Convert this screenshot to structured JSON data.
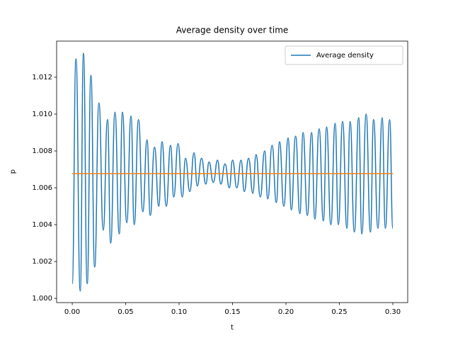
{
  "chart_data": {
    "type": "line",
    "title": "Average density over time",
    "xlabel": "t",
    "ylabel": "p",
    "legend": "upper right",
    "xlim": [
      -0.0146,
      0.3139
    ],
    "ylim": [
      0.99977,
      1.01396
    ],
    "xticks": [
      {
        "value": 0,
        "label": "0.00"
      },
      {
        "value": 0.05,
        "label": "0.05"
      },
      {
        "value": 0.1,
        "label": "0.10"
      },
      {
        "value": 0.15,
        "label": "0.15"
      },
      {
        "value": 0.2,
        "label": "0.20"
      },
      {
        "value": 0.25,
        "label": "0.25"
      },
      {
        "value": 0.3,
        "label": "0.30"
      }
    ],
    "yticks": [
      {
        "value": 1.0,
        "label": "1.000"
      },
      {
        "value": 1.002,
        "label": "1.002"
      },
      {
        "value": 1.004,
        "label": "1.004"
      },
      {
        "value": 1.006,
        "label": "1.006"
      },
      {
        "value": 1.008,
        "label": "1.008"
      },
      {
        "value": 1.01,
        "label": "1.010"
      },
      {
        "value": 1.012,
        "label": "1.012"
      }
    ],
    "series": [
      {
        "name": "Average density",
        "color": "#1f77b4",
        "x": [
          0,
          0.0035,
          0.0075,
          0.0105,
          0.014,
          0.0175,
          0.021,
          0.025,
          0.029,
          0.033,
          0.036,
          0.04,
          0.044,
          0.047,
          0.051,
          0.055,
          0.058,
          0.062,
          0.066,
          0.07,
          0.073,
          0.077,
          0.081,
          0.084,
          0.088,
          0.092,
          0.095,
          0.099,
          0.103,
          0.106,
          0.11,
          0.114,
          0.117,
          0.121,
          0.125,
          0.128,
          0.132,
          0.136,
          0.139,
          0.143,
          0.147,
          0.15,
          0.154,
          0.158,
          0.161,
          0.165,
          0.169,
          0.172,
          0.176,
          0.18,
          0.183,
          0.187,
          0.191,
          0.194,
          0.198,
          0.202,
          0.205,
          0.209,
          0.213,
          0.216,
          0.22,
          0.224,
          0.227,
          0.231,
          0.235,
          0.238,
          0.242,
          0.246,
          0.249,
          0.253,
          0.257,
          0.26,
          0.264,
          0.268,
          0.271,
          0.275,
          0.279,
          0.282,
          0.286,
          0.29,
          0.293,
          0.297,
          0.3
        ],
        "values": [
          1.0008,
          1.013,
          1.0004,
          1.0133,
          1.0008,
          1.0121,
          1.0017,
          1.0106,
          1.0037,
          1.0097,
          1.003,
          1.0101,
          1.0035,
          1.0101,
          1.0041,
          1.0099,
          1.004,
          1.0097,
          1.0047,
          1.0086,
          1.0045,
          1.0082,
          1.005,
          1.0085,
          1.005,
          1.0083,
          1.0055,
          1.0084,
          1.0055,
          1.0076,
          1.0058,
          1.0079,
          1.0061,
          1.0076,
          1.0062,
          1.0074,
          1.0063,
          1.0075,
          1.0062,
          1.0073,
          1.006,
          1.0075,
          1.006,
          1.0075,
          1.0058,
          1.0076,
          1.0057,
          1.0078,
          1.0055,
          1.008,
          1.0054,
          1.0083,
          1.0052,
          1.0085,
          1.005,
          1.0087,
          1.0048,
          1.0088,
          1.0046,
          1.009,
          1.0045,
          1.009,
          1.0043,
          1.0092,
          1.0042,
          1.0093,
          1.004,
          1.0095,
          1.004,
          1.0096,
          1.0038,
          1.0096,
          1.0036,
          1.0098,
          1.0035,
          1.01,
          1.0036,
          1.0097,
          1.0038,
          1.0098,
          1.0038,
          1.0097,
          1.0038
        ]
      },
      {
        "color": "#ff7f0e",
        "x": [
          0,
          0.3
        ],
        "values": [
          1.00677,
          1.00677
        ]
      }
    ]
  }
}
